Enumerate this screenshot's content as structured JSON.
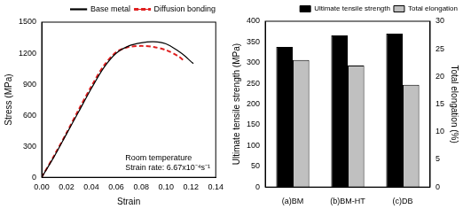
{
  "chart_data": [
    {
      "type": "line",
      "x_label": "Strain",
      "y_label": "Stress (MPa)",
      "annotations": [
        "Room temperature",
        "Strain rate: 6.67x10⁻⁴s⁻¹"
      ],
      "x": [
        0,
        0.01,
        0.02,
        0.03,
        0.04,
        0.05,
        0.06,
        0.07,
        0.08,
        0.09,
        0.1,
        0.11,
        0.115,
        0.12,
        0.122
      ],
      "series": [
        {
          "name": "Base metal",
          "color": "#000000",
          "line_style": "solid",
          "values": [
            0,
            200,
            420,
            640,
            860,
            1060,
            1200,
            1270,
            1300,
            1310,
            1290,
            1220,
            1175,
            1120,
            1100
          ]
        },
        {
          "name": "Diffusion bonding",
          "color": "#e02020",
          "line_style": "dashed",
          "values": [
            0,
            210,
            430,
            660,
            880,
            1080,
            1210,
            1260,
            1270,
            1260,
            1230,
            1170,
            1120,
            null,
            null
          ]
        }
      ],
      "xlim": [
        0,
        0.14
      ],
      "xticks": [
        {
          "value": 0,
          "label": "0.00"
        },
        {
          "value": 0.02,
          "label": "0.02"
        },
        {
          "value": 0.04,
          "label": "0.04"
        },
        {
          "value": 0.06,
          "label": "0.06"
        },
        {
          "value": 0.08,
          "label": "0.08"
        },
        {
          "value": 0.1,
          "label": "0.10"
        },
        {
          "value": 0.12,
          "label": "0.12"
        },
        {
          "value": 0.14,
          "label": "0.14"
        }
      ],
      "ylim": [
        0,
        1500
      ],
      "yticks": [
        0,
        300,
        600,
        900,
        1200,
        1500
      ],
      "grid": false,
      "legend": "upper right"
    },
    {
      "type": "bar",
      "y_label": "Ultimate tensile strength (MPa)",
      "y2_label": "Total elongation (%)",
      "categories": [
        "(a)BM",
        "(b)BM-HT",
        "(c)DB"
      ],
      "series": [
        {
          "name": "Ultimate tensile strength",
          "color": "#000000",
          "values": [
            338,
            366,
            370
          ]
        },
        {
          "name": "Total elongation",
          "color": "#c0c0c0",
          "values": [
            23,
            22,
            18.5
          ],
          "axis": "y2"
        }
      ],
      "ylim": [
        0,
        400
      ],
      "yticks": [
        0,
        50,
        100,
        150,
        200,
        250,
        300,
        350,
        400
      ],
      "y2lim": [
        0,
        30
      ],
      "y2ticks": [
        0,
        5,
        10,
        15,
        20,
        25,
        30
      ],
      "grid": false,
      "legend": "upper right"
    }
  ]
}
